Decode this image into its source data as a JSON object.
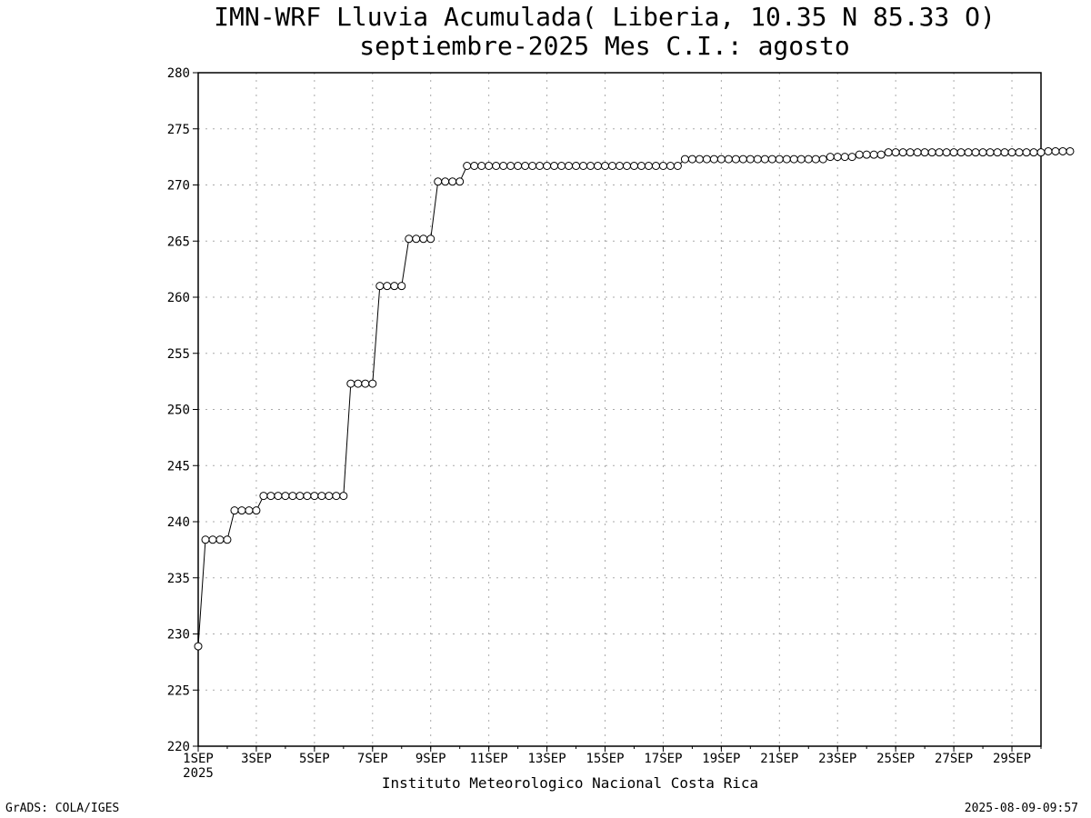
{
  "chart_data": {
    "type": "line",
    "title": "IMN-WRF  Lluvia Acumulada( Liberia, 10.35  N 85.33  O)",
    "subtitle": "septiembre-2025 Mes C.I.: agosto",
    "xlabel": "",
    "ylabel": "",
    "ylim": [
      220,
      280
    ],
    "yticks": [
      220,
      225,
      230,
      235,
      240,
      245,
      250,
      255,
      260,
      265,
      270,
      275,
      280
    ],
    "xlim": [
      0,
      29
    ],
    "xticks": [
      {
        "x": 0,
        "label": "1SEP"
      },
      {
        "x": 2,
        "label": "3SEP"
      },
      {
        "x": 4,
        "label": "5SEP"
      },
      {
        "x": 6,
        "label": "7SEP"
      },
      {
        "x": 8,
        "label": "9SEP"
      },
      {
        "x": 10,
        "label": "11SEP"
      },
      {
        "x": 12,
        "label": "13SEP"
      },
      {
        "x": 14,
        "label": "15SEP"
      },
      {
        "x": 16,
        "label": "17SEP"
      },
      {
        "x": 18,
        "label": "19SEP"
      },
      {
        "x": 20,
        "label": "21SEP"
      },
      {
        "x": 22,
        "label": "23SEP"
      },
      {
        "x": 24,
        "label": "25SEP"
      },
      {
        "x": 26,
        "label": "27SEP"
      },
      {
        "x": 28,
        "label": "29SEP"
      }
    ],
    "x_year_label": "2025",
    "grid": true,
    "step_per_day": 4,
    "series": [
      {
        "values": [
          228.9,
          238.4,
          238.4,
          238.4,
          238.4,
          241.0,
          241.0,
          241.0,
          241.0,
          242.3,
          242.3,
          242.3,
          242.3,
          242.3,
          242.3,
          242.3,
          242.3,
          242.3,
          242.3,
          242.3,
          242.3,
          252.3,
          252.3,
          252.3,
          252.3,
          261.0,
          261.0,
          261.0,
          261.0,
          265.2,
          265.2,
          265.2,
          265.2,
          270.3,
          270.3,
          270.3,
          270.3,
          271.7,
          271.7,
          271.7,
          271.7,
          271.7,
          271.7,
          271.7,
          271.7,
          271.7,
          271.7,
          271.7,
          271.7,
          271.7,
          271.7,
          271.7,
          271.7,
          271.7,
          271.7,
          271.7,
          271.7,
          271.7,
          271.7,
          271.7,
          271.7,
          271.7,
          271.7,
          271.7,
          271.7,
          271.7,
          271.7,
          272.3,
          272.3,
          272.3,
          272.3,
          272.3,
          272.3,
          272.3,
          272.3,
          272.3,
          272.3,
          272.3,
          272.3,
          272.3,
          272.3,
          272.3,
          272.3,
          272.3,
          272.3,
          272.3,
          272.3,
          272.5,
          272.5,
          272.5,
          272.5,
          272.7,
          272.7,
          272.7,
          272.7,
          272.9,
          272.9,
          272.9,
          272.9,
          272.9,
          272.9,
          272.9,
          272.9,
          272.9,
          272.9,
          272.9,
          272.9,
          272.9,
          272.9,
          272.9,
          272.9,
          272.9,
          272.9,
          272.9,
          272.9,
          272.9,
          272.9,
          273.0,
          273.0,
          273.0,
          273.0
        ]
      }
    ]
  },
  "footer": {
    "institute": "Instituto Meteorologico Nacional Costa Rica",
    "left": "GrADS: COLA/IGES",
    "right": "2025-08-09-09:57"
  },
  "colors": {
    "line": "#000000",
    "marker_fill": "#ffffff",
    "grid": "#aaaaaa"
  }
}
